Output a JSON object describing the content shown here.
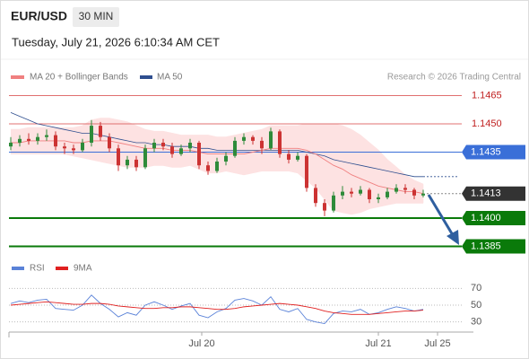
{
  "chart_data": {
    "type": "candlestick",
    "title": "EUR/USD",
    "timeframe": "30 MIN",
    "subtitle": "Tuesday, July 21, 2026 6:10:34 AM CET",
    "source": "Research © 2026 Trading Central",
    "up_color": "#2e8b3a",
    "down_color": "#cc3333",
    "xlim": [
      -0.2,
      51.6
    ],
    "xticks": [
      {
        "value": 21.3,
        "label": "Jul 20"
      },
      {
        "value": 41,
        "label": "Jul 21"
      },
      {
        "value": 47.6,
        "label": "Jul 25"
      }
    ],
    "ylim": [
      1.138,
      1.147
    ],
    "ohlc": [
      [
        1.1438,
        1.1443,
        1.1436,
        1.144
      ],
      [
        1.144,
        1.1444,
        1.1438,
        1.1442
      ],
      [
        1.1442,
        1.1445,
        1.1439,
        1.1441
      ],
      [
        1.1441,
        1.1445,
        1.1439,
        1.1443
      ],
      [
        1.1443,
        1.1447,
        1.1441,
        1.1444
      ],
      [
        1.1444,
        1.1446,
        1.1436,
        1.1438
      ],
      [
        1.1438,
        1.144,
        1.1434,
        1.1437
      ],
      [
        1.1437,
        1.1439,
        1.1434,
        1.1436
      ],
      [
        1.1436,
        1.1442,
        1.1435,
        1.144
      ],
      [
        1.144,
        1.1452,
        1.1438,
        1.1449
      ],
      [
        1.1449,
        1.1451,
        1.1441,
        1.1443
      ],
      [
        1.1443,
        1.1445,
        1.1435,
        1.1437
      ],
      [
        1.1437,
        1.1439,
        1.1425,
        1.1428
      ],
      [
        1.1428,
        1.1433,
        1.1426,
        1.1431
      ],
      [
        1.1431,
        1.1433,
        1.1425,
        1.1427
      ],
      [
        1.1427,
        1.1439,
        1.1426,
        1.1437
      ],
      [
        1.1437,
        1.1442,
        1.1435,
        1.144
      ],
      [
        1.144,
        1.1442,
        1.1436,
        1.1438
      ],
      [
        1.1438,
        1.144,
        1.1432,
        1.1434
      ],
      [
        1.1434,
        1.1439,
        1.1433,
        1.1437
      ],
      [
        1.1437,
        1.1442,
        1.1435,
        1.144
      ],
      [
        1.144,
        1.1441,
        1.1426,
        1.1428
      ],
      [
        1.1428,
        1.143,
        1.1423,
        1.1425
      ],
      [
        1.1425,
        1.1432,
        1.1424,
        1.143
      ],
      [
        1.143,
        1.1435,
        1.1428,
        1.1433
      ],
      [
        1.1433,
        1.1443,
        1.1432,
        1.1441
      ],
      [
        1.1441,
        1.1445,
        1.1439,
        1.1443
      ],
      [
        1.1443,
        1.1444,
        1.1439,
        1.1441
      ],
      [
        1.1441,
        1.1443,
        1.1434,
        1.1437
      ],
      [
        1.1437,
        1.1448,
        1.1436,
        1.1446
      ],
      [
        1.1446,
        1.1447,
        1.1432,
        1.1434
      ],
      [
        1.1434,
        1.1436,
        1.1429,
        1.1431
      ],
      [
        1.1431,
        1.1435,
        1.143,
        1.1433
      ],
      [
        1.1433,
        1.1434,
        1.1414,
        1.1416
      ],
      [
        1.1416,
        1.1418,
        1.1406,
        1.1408
      ],
      [
        1.1408,
        1.141,
        1.1401,
        1.1404
      ],
      [
        1.1404,
        1.1414,
        1.1403,
        1.1412
      ],
      [
        1.1412,
        1.1417,
        1.141,
        1.1414
      ],
      [
        1.1414,
        1.1416,
        1.1411,
        1.1413
      ],
      [
        1.1413,
        1.1417,
        1.1412,
        1.1415
      ],
      [
        1.1415,
        1.1416,
        1.1408,
        1.141
      ],
      [
        1.141,
        1.1413,
        1.1408,
        1.1411
      ],
      [
        1.1411,
        1.1416,
        1.141,
        1.1414
      ],
      [
        1.1414,
        1.1418,
        1.1413,
        1.1416
      ],
      [
        1.1416,
        1.1418,
        1.1413,
        1.1415
      ],
      [
        1.1415,
        1.1416,
        1.141,
        1.1412
      ],
      [
        1.1412,
        1.1415,
        1.1411,
        1.1413
      ]
    ],
    "bollinger": {
      "name": "MA 20 + Bollinger Bands",
      "color": "#f08080",
      "fill": "#fde2e2",
      "middle": [
        1.144,
        1.144,
        1.1441,
        1.1441,
        1.1441,
        1.1441,
        1.1441,
        1.144,
        1.144,
        1.1441,
        1.1441,
        1.1441,
        1.144,
        1.1439,
        1.1438,
        1.1437,
        1.1437,
        1.1437,
        1.1436,
        1.1436,
        1.1436,
        1.1435,
        1.1434,
        1.1434,
        1.1434,
        1.1434,
        1.1434,
        1.1435,
        1.1436,
        1.1437,
        1.1437,
        1.1437,
        1.1437,
        1.1436,
        1.1434,
        1.1431,
        1.1428,
        1.1426,
        1.1423,
        1.1421,
        1.1419,
        1.1417,
        1.1416,
        1.1415,
        1.1414,
        1.1414,
        1.1413
      ],
      "upper": [
        1.1447,
        1.1447,
        1.1448,
        1.1448,
        1.1448,
        1.1448,
        1.1448,
        1.1448,
        1.1449,
        1.1452,
        1.1453,
        1.1453,
        1.1452,
        1.1451,
        1.1449,
        1.1447,
        1.1446,
        1.1446,
        1.1445,
        1.1444,
        1.1444,
        1.1444,
        1.1444,
        1.1443,
        1.1443,
        1.1444,
        1.1445,
        1.1446,
        1.1447,
        1.1449,
        1.1449,
        1.1449,
        1.1449,
        1.145,
        1.145,
        1.145,
        1.145,
        1.1449,
        1.1447,
        1.1444,
        1.144,
        1.1436,
        1.1431,
        1.1427,
        1.1423,
        1.142,
        1.1418
      ],
      "lower": [
        1.1434,
        1.1434,
        1.1434,
        1.1434,
        1.1434,
        1.1434,
        1.1434,
        1.1433,
        1.1432,
        1.1431,
        1.143,
        1.1429,
        1.1428,
        1.1427,
        1.1427,
        1.1427,
        1.1428,
        1.1428,
        1.1427,
        1.1427,
        1.1428,
        1.1426,
        1.1424,
        1.1424,
        1.1425,
        1.1424,
        1.1423,
        1.1424,
        1.1425,
        1.1425,
        1.1425,
        1.1425,
        1.1424,
        1.142,
        1.1416,
        1.141,
        1.1404,
        1.1403,
        1.1402,
        1.1403,
        1.1405,
        1.1406,
        1.1407,
        1.1408,
        1.1408,
        1.1408,
        1.1408
      ]
    },
    "ma50": {
      "name": "MA 50",
      "color": "#2f4f8f",
      "values": [
        1.1456,
        1.1454,
        1.1452,
        1.145,
        1.1449,
        1.1448,
        1.1447,
        1.1446,
        1.1445,
        1.1445,
        1.1444,
        1.1443,
        1.1442,
        1.1441,
        1.144,
        1.144,
        1.1439,
        1.1439,
        1.1438,
        1.1438,
        1.1438,
        1.1437,
        1.1437,
        1.1436,
        1.1436,
        1.1436,
        1.1436,
        1.1436,
        1.1436,
        1.1436,
        1.1436,
        1.1436,
        1.1436,
        1.1435,
        1.1434,
        1.1433,
        1.1431,
        1.143,
        1.1429,
        1.1428,
        1.1427,
        1.1426,
        1.1425,
        1.1424,
        1.1423,
        1.1422,
        1.1422
      ]
    },
    "levels": [
      {
        "value": 1.1465,
        "color": "#e07070",
        "style": "thin"
      },
      {
        "value": 1.145,
        "label": "1.1450",
        "color": "#e07070",
        "style": "thin"
      },
      {
        "value": 1.1435,
        "color": "#3a6fd8",
        "style": "box"
      },
      {
        "value": 1.1413,
        "color": "#333333",
        "style": "last"
      },
      {
        "value": 1.14,
        "label": "1.1400",
        "color": "#0a7a0a",
        "style": "thick"
      },
      {
        "value": 1.1385,
        "color": "#0a7a0a",
        "style": "thick"
      }
    ],
    "rsi": {
      "ylim": [
        20,
        80
      ],
      "yticks": [
        70,
        50,
        30
      ],
      "series": [
        {
          "name": "RSI",
          "color": "#5a82d8",
          "values": [
            52,
            55,
            53,
            56,
            57,
            46,
            45,
            44,
            50,
            62,
            52,
            45,
            36,
            41,
            38,
            50,
            54,
            50,
            45,
            49,
            52,
            38,
            35,
            42,
            46,
            56,
            58,
            55,
            50,
            60,
            45,
            42,
            46,
            33,
            30,
            28,
            40,
            43,
            42,
            45,
            39,
            41,
            45,
            48,
            46,
            43,
            45
          ]
        },
        {
          "name": "9MA",
          "color": "#e02020",
          "values": [
            50,
            51,
            52,
            53,
            54,
            53,
            52,
            51,
            51,
            52,
            52,
            51,
            49,
            48,
            47,
            46,
            46,
            47,
            47,
            48,
            48,
            47,
            46,
            45,
            45,
            46,
            48,
            49,
            50,
            51,
            52,
            51,
            50,
            48,
            46,
            43,
            41,
            40,
            39,
            39,
            39,
            40,
            41,
            42,
            43,
            43,
            44
          ]
        }
      ]
    }
  }
}
